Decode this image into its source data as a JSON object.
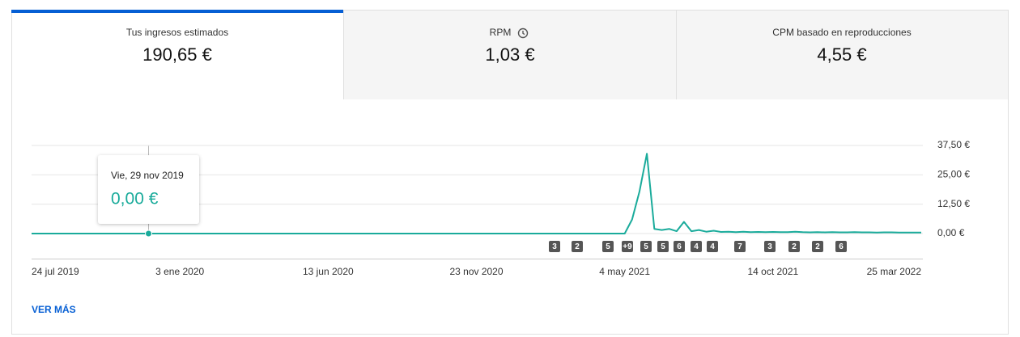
{
  "tabs": [
    {
      "title": "Tus ingresos estimados",
      "value": "190,65 €"
    },
    {
      "title": "RPM",
      "value": "1,03 €"
    },
    {
      "title": "CPM basado en reproducciones",
      "value": "4,55 €"
    }
  ],
  "tooltip": {
    "date": "Vie, 29 nov 2019",
    "value": "0,00 €"
  },
  "link": "VER MÁS",
  "chart_data": {
    "type": "line",
    "color": "#1aab9b",
    "grid": true,
    "categories": [
      "24 jul 2019",
      null,
      null,
      null,
      null,
      null,
      null,
      null,
      null,
      null,
      null,
      null,
      null,
      null,
      null,
      null,
      null,
      null,
      null,
      null,
      "3 ene 2020",
      null,
      null,
      null,
      null,
      null,
      null,
      null,
      null,
      null,
      null,
      null,
      null,
      null,
      null,
      null,
      null,
      null,
      null,
      null,
      "13 jun 2020",
      null,
      null,
      null,
      null,
      null,
      null,
      null,
      null,
      null,
      null,
      null,
      null,
      null,
      null,
      null,
      null,
      null,
      null,
      null,
      "23 nov 2020",
      null,
      null,
      null,
      null,
      null,
      null,
      null,
      null,
      null,
      null,
      null,
      null,
      null,
      null,
      null,
      null,
      null,
      null,
      null,
      "4 may 2021",
      null,
      null,
      null,
      null,
      null,
      null,
      null,
      null,
      null,
      null,
      null,
      null,
      null,
      null,
      null,
      null,
      null,
      null,
      null,
      "14 oct 2021",
      null,
      null,
      null,
      null,
      null,
      null,
      null,
      null,
      null,
      null,
      null,
      null,
      null,
      null,
      null,
      null,
      null,
      null,
      null,
      "25 mar 2022"
    ],
    "values": [
      0,
      0,
      0,
      0,
      0,
      0,
      0,
      0,
      0,
      0,
      0,
      0,
      0,
      0,
      0,
      0,
      0,
      0,
      0,
      0,
      0,
      0,
      0,
      0,
      0,
      0,
      0,
      0,
      0,
      0,
      0,
      0,
      0,
      0,
      0,
      0,
      0,
      0,
      0,
      0,
      0,
      0,
      0,
      0,
      0,
      0,
      0,
      0,
      0,
      0,
      0,
      0,
      0,
      0,
      0,
      0,
      0,
      0,
      0,
      0,
      0,
      0,
      0,
      0,
      0,
      0,
      0,
      0,
      0,
      0,
      0,
      0,
      0,
      0,
      0,
      0,
      0,
      0,
      0,
      0,
      0,
      6,
      18,
      34,
      2,
      1.5,
      2,
      1,
      5,
      1,
      1.5,
      0.8,
      1.2,
      0.7,
      0.8,
      0.6,
      0.8,
      0.6,
      0.7,
      0.6,
      0.7,
      0.6,
      0.6,
      0.8,
      0.6,
      0.5,
      0.6,
      0.5,
      0.6,
      0.5,
      0.5,
      0.6,
      0.5,
      0.5,
      0.4,
      0.5,
      0.5,
      0.4,
      0.4,
      0.4,
      0.4
    ],
    "ylim": [
      0,
      37.5
    ],
    "yticks": [
      {
        "value": 0,
        "label": "0,00 €"
      },
      {
        "value": 12.5,
        "label": "12,50 €"
      },
      {
        "value": 25,
        "label": "25,00 €"
      },
      {
        "value": 37.5,
        "label": "37,50 €"
      }
    ],
    "annotations": [
      "3",
      "2",
      "5",
      "+9",
      "5",
      "5",
      "6",
      "4",
      "4",
      "7",
      "3",
      "2",
      "2",
      "6"
    ]
  }
}
